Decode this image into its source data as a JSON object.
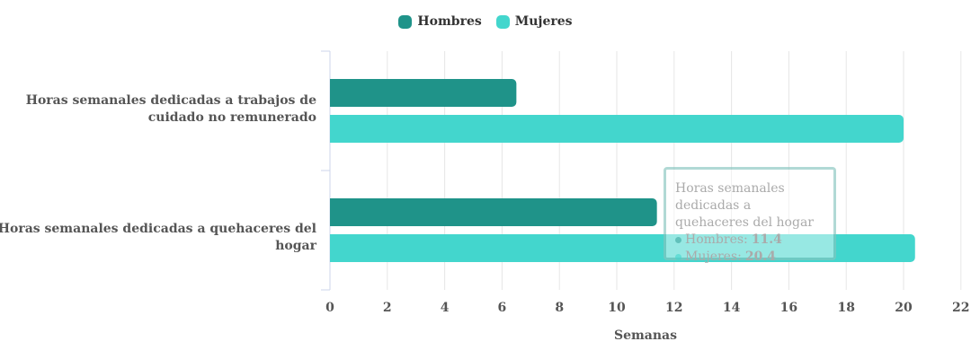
{
  "chart_data": {
    "type": "bar",
    "orientation": "horizontal",
    "categories": [
      "Horas semanales dedicadas a trabajos de cuidado no remunerado",
      "Horas semanales dedicadas a quehaceres del hogar"
    ],
    "series": [
      {
        "name": "Hombres",
        "values": [
          6.5,
          11.4
        ],
        "color": "#1f9389"
      },
      {
        "name": "Mujeres",
        "values": [
          20.0,
          20.4
        ],
        "color": "#43d6cd"
      }
    ],
    "xlabel": "Semanas",
    "xlim": [
      0,
      22
    ],
    "xticks": [
      "0",
      "2",
      "4",
      "6",
      "8",
      "10",
      "12",
      "14",
      "16",
      "18",
      "20",
      "22"
    ],
    "grid": true,
    "legend_position": "top-center"
  },
  "tooltip": {
    "title": "Horas semanales dedicadas a quehaceres del hogar",
    "rows": [
      {
        "label": "Hombres: ",
        "value": "11.4"
      },
      {
        "label": "Mujeres: ",
        "value": "20.4"
      }
    ]
  }
}
